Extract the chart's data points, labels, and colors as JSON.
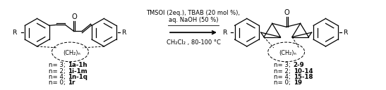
{
  "figsize": [
    5.47,
    1.28
  ],
  "dpi": 100,
  "bg_color": "#ffffff",
  "rc_line1": "TMSOl (2eq.), TBAB (20 mol %),",
  "rc_line2": "aq. NaOH (50 %)",
  "rc_line3": "CH₂Cl₂ , 80-100 °C",
  "left_labels": [
    [
      "n= 3; ",
      "1a-1h"
    ],
    [
      "n= 2; ",
      "1i-1m"
    ],
    [
      "n= 4; ",
      "1n-1q"
    ],
    [
      "n= 0; ",
      "1r"
    ]
  ],
  "right_labels": [
    [
      "n= 3; ",
      "2-9"
    ],
    [
      "n= 2; ",
      "10-14"
    ],
    [
      "n= 4; ",
      "15-18"
    ],
    [
      "n= 0; ",
      "19"
    ]
  ],
  "text_color": "#000000",
  "fs": 6.2,
  "fsc": 6.0
}
